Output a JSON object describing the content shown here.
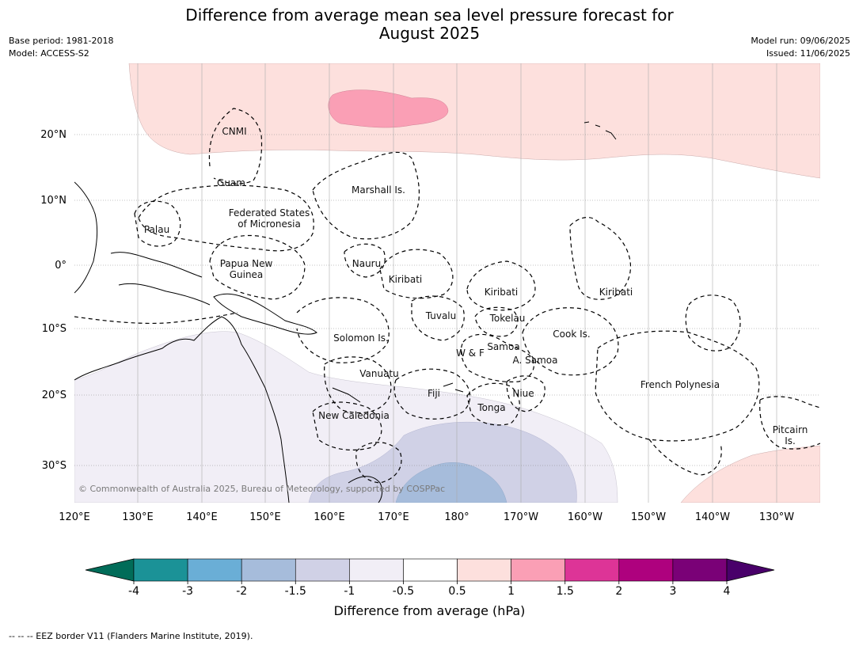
{
  "title_line1": "Difference from average mean sea level pressure forecast for",
  "title_line2": "August 2025",
  "meta_left": {
    "base_period": "Base period: 1981-2018",
    "model": "Model: ACCESS-S2"
  },
  "meta_right": {
    "model_run": "Model run: 09/06/2025",
    "issued": "Issued: 11/06/2025"
  },
  "lon_ticks": [
    "120°E",
    "130°E",
    "140°E",
    "150°E",
    "160°E",
    "170°E",
    "180°",
    "170°W",
    "160°W",
    "150°W",
    "140°W",
    "130°W"
  ],
  "lat_ticks": [
    "20°N",
    "10°N",
    "0°",
    "10°S",
    "20°S",
    "30°S"
  ],
  "regions": [
    {
      "name": "CNMI",
      "lines": [
        "CNMI"
      ]
    },
    {
      "name": "guam",
      "lines": [
        "Guam"
      ]
    },
    {
      "name": "marshall",
      "lines": [
        "Marshall Is."
      ]
    },
    {
      "name": "fsm",
      "lines": [
        "Federated States",
        "of Micronesia"
      ]
    },
    {
      "name": "palau",
      "lines": [
        "Palau"
      ]
    },
    {
      "name": "png",
      "lines": [
        "Papua New",
        "Guinea"
      ]
    },
    {
      "name": "nauru",
      "lines": [
        "Nauru"
      ]
    },
    {
      "name": "kiribati-w",
      "lines": [
        "Kiribati"
      ]
    },
    {
      "name": "kiribati-c",
      "lines": [
        "Kiribati"
      ]
    },
    {
      "name": "kiribati-e",
      "lines": [
        "Kiribati"
      ]
    },
    {
      "name": "tuvalu",
      "lines": [
        "Tuvalu"
      ]
    },
    {
      "name": "tokelau",
      "lines": [
        "Tokelau"
      ]
    },
    {
      "name": "solomon",
      "lines": [
        "Solomon Is."
      ]
    },
    {
      "name": "cook",
      "lines": [
        "Cook Is."
      ]
    },
    {
      "name": "wf",
      "lines": [
        "W & F"
      ]
    },
    {
      "name": "samoa",
      "lines": [
        "Samoa"
      ]
    },
    {
      "name": "asamoa",
      "lines": [
        "A. Samoa"
      ]
    },
    {
      "name": "vanuatu",
      "lines": [
        "Vanuatu"
      ]
    },
    {
      "name": "fiji",
      "lines": [
        "Fiji"
      ]
    },
    {
      "name": "niue",
      "lines": [
        "Niue"
      ]
    },
    {
      "name": "tonga",
      "lines": [
        "Tonga"
      ]
    },
    {
      "name": "frpoly",
      "lines": [
        "French Polynesia"
      ]
    },
    {
      "name": "newcal",
      "lines": [
        "New Caledonia"
      ]
    },
    {
      "name": "pitcairn",
      "lines": [
        "Pitcairn",
        "Is."
      ]
    }
  ],
  "copyright": "© Commonwealth of Australia 2025, Bureau of Meteorology, supported by COSPPac",
  "colorbar": {
    "ticks": [
      "-4",
      "-3",
      "-2",
      "-1.5",
      "-1",
      "-0.5",
      "0.5",
      "1",
      "1.5",
      "2",
      "3",
      "4"
    ],
    "colors": [
      "#1b9297",
      "#6aaed6",
      "#a6bcdb",
      "#d0d1e6",
      "#f1eef6",
      "#ffffff",
      "#fde0dd",
      "#fa9fb5",
      "#dd3497",
      "#ae017e",
      "#7a0177"
    ],
    "under_color": "#016c59",
    "over_color": "#49006a",
    "label": "Difference from average (hPa)"
  },
  "footnote": "--  --  -- EEZ border V11 (Flanders Marine Institute, 2019)."
}
